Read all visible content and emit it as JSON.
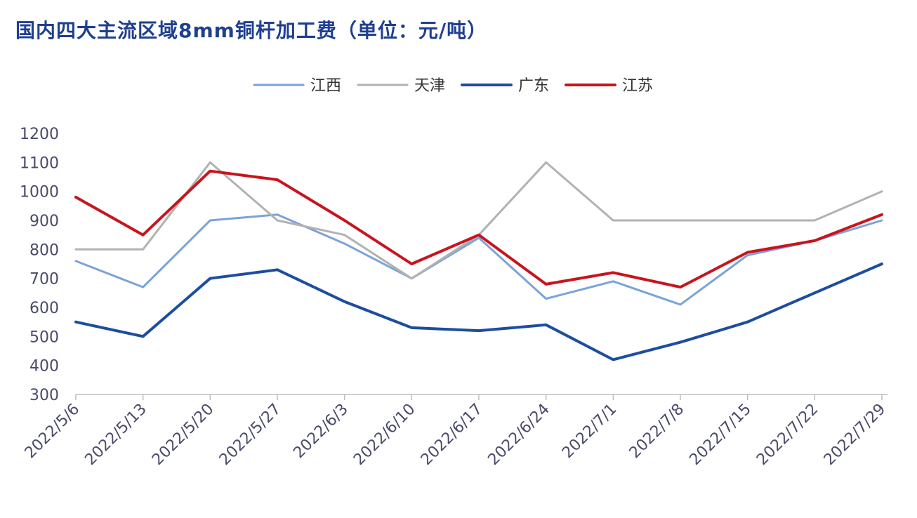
{
  "chart_data": {
    "type": "line",
    "title": "国内四大主流区域8mm铜杆加工费（单位：元/吨）",
    "xlabel": "",
    "ylabel": "",
    "categories": [
      "2022/5/6",
      "2022/5/13",
      "2022/5/20",
      "2022/5/27",
      "2022/6/3",
      "2022/6/10",
      "2022/6/17",
      "2022/6/24",
      "2022/7/1",
      "2022/7/8",
      "2022/7/15",
      "2022/7/22",
      "2022/7/29"
    ],
    "ylim": [
      300,
      1200
    ],
    "yticks": [
      300,
      400,
      500,
      600,
      700,
      800,
      900,
      1000,
      1100,
      1200
    ],
    "grid": false,
    "legend_position": "top-center",
    "series": [
      {
        "name": "江西",
        "color": "#7aa3d8",
        "stroke": "thin",
        "values": [
          760,
          670,
          900,
          920,
          820,
          700,
          840,
          630,
          690,
          610,
          780,
          830,
          900
        ]
      },
      {
        "name": "天津",
        "color": "#b2b2b2",
        "stroke": "thin",
        "values": [
          800,
          800,
          1100,
          900,
          850,
          700,
          850,
          1100,
          900,
          900,
          900,
          900,
          1000
        ]
      },
      {
        "name": "广东",
        "color": "#1d4d9e",
        "stroke": "thick",
        "values": [
          550,
          500,
          700,
          730,
          620,
          530,
          520,
          540,
          420,
          480,
          550,
          650,
          750
        ]
      },
      {
        "name": "江苏",
        "color": "#c8141e",
        "stroke": "thick",
        "values": [
          980,
          850,
          1070,
          1040,
          900,
          750,
          850,
          680,
          720,
          670,
          790,
          830,
          920
        ]
      }
    ]
  }
}
